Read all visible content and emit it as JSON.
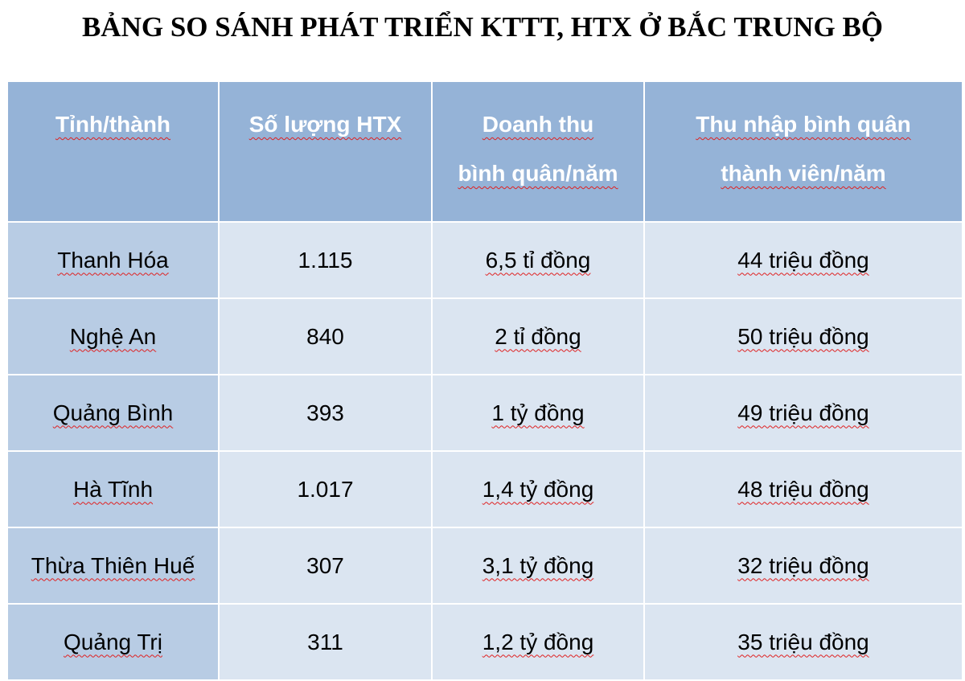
{
  "title": "BẢNG SO SÁNH PHÁT TRIỂN KTTT, HTX Ở BẮC TRUNG BỘ",
  "table": {
    "header": [
      [
        "Tỉnh/thành"
      ],
      [
        "Số lượng HTX"
      ],
      [
        "Doanh thu",
        "bình quân/năm"
      ],
      [
        "Thu nhập bình quân",
        "thành viên/năm"
      ]
    ],
    "rows": [
      [
        "Thanh Hóa",
        "1.115",
        "6,5 tỉ đồng",
        "44 triệu đồng"
      ],
      [
        "Nghệ An",
        "840",
        "2 tỉ đồng",
        "50 triệu đồng"
      ],
      [
        "Quảng Bình",
        "393",
        "1 tỷ đồng",
        "49 triệu đồng"
      ],
      [
        "Hà Tĩnh",
        "1.017",
        "1,4 tỷ đồng",
        "48 triệu đồng"
      ],
      [
        "Thừa Thiên Huế",
        "307",
        "3,1 tỷ đồng",
        "32 triệu đồng"
      ],
      [
        "Quảng Trị",
        "311",
        "1,2 tỷ đồng",
        "35 triệu đồng"
      ]
    ]
  }
}
